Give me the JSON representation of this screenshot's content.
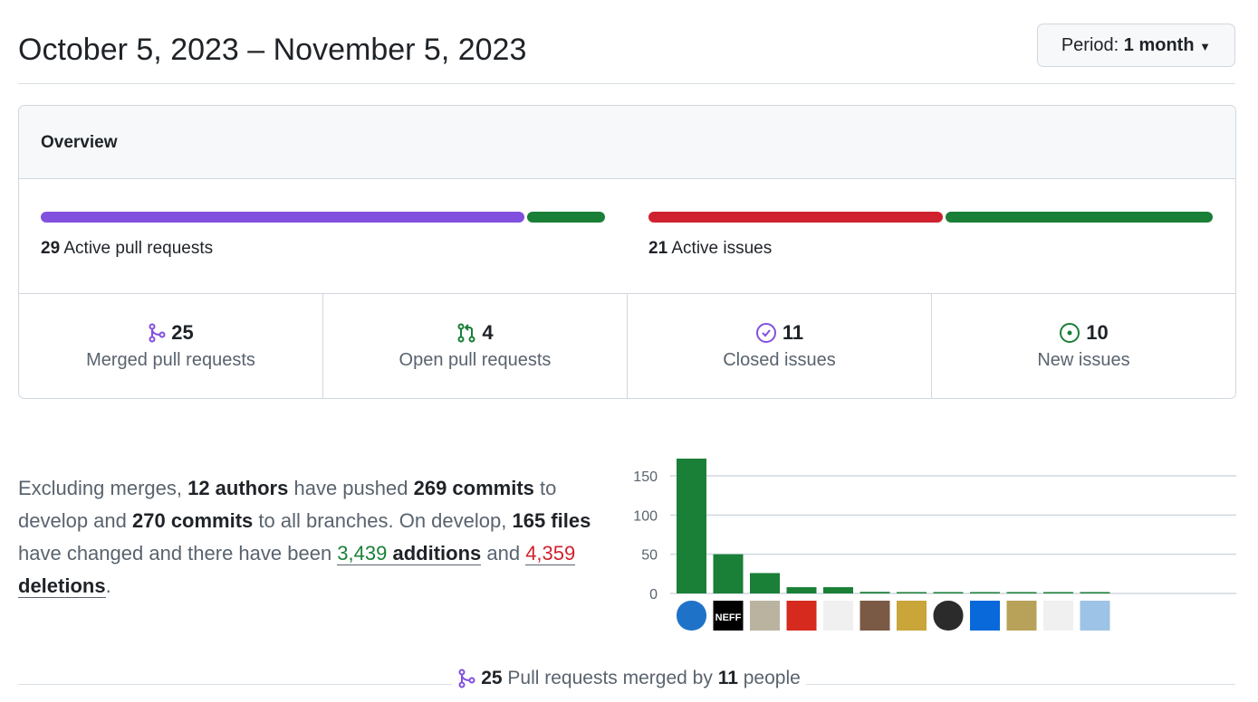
{
  "header": {
    "date_range": "October 5, 2023 – November 5, 2023",
    "period_label": "Period:",
    "period_value": "1 month"
  },
  "overview": {
    "title": "Overview",
    "pull_requests": {
      "count": "29",
      "label": "Active pull requests",
      "merged": 25,
      "open": 4
    },
    "issues": {
      "count": "21",
      "label": "Active issues",
      "closed": 11,
      "new": 10
    },
    "stats": [
      {
        "icon": "git-merge-icon",
        "value": "25",
        "label": "Merged pull requests",
        "color": "#8250df"
      },
      {
        "icon": "git-pull-request-icon",
        "value": "4",
        "label": "Open pull requests",
        "color": "#1a7f37"
      },
      {
        "icon": "issue-closed-icon",
        "value": "11",
        "label": "Closed issues",
        "color": "#8250df"
      },
      {
        "icon": "issue-opened-icon",
        "value": "10",
        "label": "New issues",
        "color": "#1a7f37"
      }
    ]
  },
  "summary": {
    "t1": "Excluding merges, ",
    "authors": "12 authors",
    "t2": " have pushed ",
    "commits": "269 commits",
    "t3": " to develop and ",
    "commits_all": "270 commits",
    "t4": " to all branches. On develop, ",
    "files": "165 files",
    "t5": " have changed and there have been ",
    "additions_num": "3,439",
    "additions_word": " additions",
    "t6": " and ",
    "deletions_num": "4,359",
    "deletions_word": " deletions",
    "t7": "."
  },
  "chart_data": {
    "type": "bar",
    "categories": [
      "author-1",
      "author-2",
      "author-3",
      "author-4",
      "author-5",
      "author-6",
      "author-7",
      "author-8",
      "author-9",
      "author-10",
      "author-11",
      "author-12"
    ],
    "values": [
      172,
      50,
      26,
      8,
      8,
      2,
      1,
      1,
      1,
      1,
      1,
      1
    ],
    "yticks": [
      "0",
      "50",
      "100",
      "150"
    ],
    "ylim": [
      0,
      175
    ],
    "grid": true,
    "bar_color": "#1a7f37",
    "avatar_colors": [
      "#1e73c9",
      "#000000",
      "#b9b3a0",
      "#d62a1e",
      "#f0f0f0",
      "#7a5a44",
      "#c9a53a",
      "#2b2b2b",
      "#0969da",
      "#b8a25a",
      "#f0f0f0",
      "#9dc3e6"
    ],
    "avatar_text": {
      "author-2": "NEFF"
    }
  },
  "footer": {
    "count": "25",
    "t1": " Pull requests merged by ",
    "people": "11",
    "t2": " people"
  },
  "colors": {
    "purple": "#8250df",
    "green": "#1a7f37",
    "red": "#cf222e"
  }
}
